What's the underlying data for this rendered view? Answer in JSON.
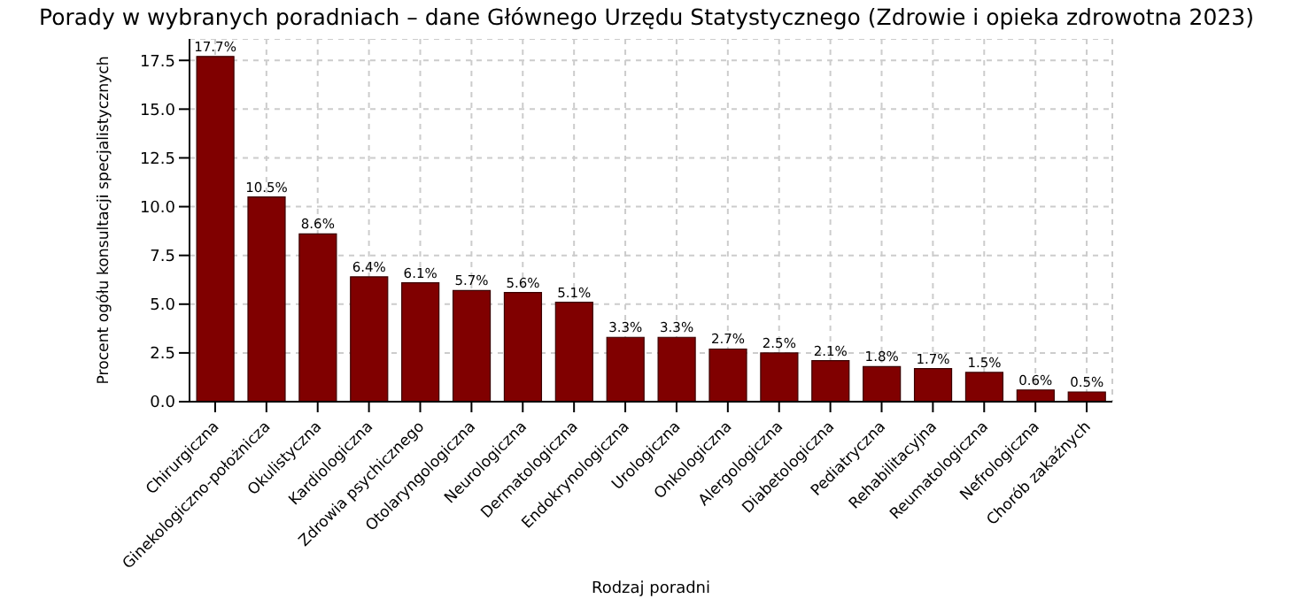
{
  "chart_data": {
    "type": "bar",
    "title": "Porady w wybranych poradniach – dane Głównego Urzędu Statystycznego (Zdrowie i opieka zdrowotna 2023)",
    "xlabel": "Rodzaj poradni",
    "ylabel": "Procent ogółu konsultacji specjalistycznych",
    "categories": [
      "Chirurgiczna",
      "Ginekologiczno-położnicza",
      "Okulistyczna",
      "Kardiologiczna",
      "Zdrowia psychicznego",
      "Otolaryngologiczna",
      "Neurologiczna",
      "Dermatologiczna",
      "Endokrynologiczna",
      "Urologiczna",
      "Onkologiczna",
      "Alergologiczna",
      "Diabetologiczna",
      "Pediatryczna",
      "Rehabilitacyjna",
      "Reumatologiczna",
      "Nefrologiczna",
      "Chorób zakaźnych"
    ],
    "values": [
      17.7,
      10.5,
      8.6,
      6.4,
      6.1,
      5.7,
      5.6,
      5.1,
      3.3,
      3.3,
      2.7,
      2.5,
      2.1,
      1.8,
      1.7,
      1.5,
      0.6,
      0.5
    ],
    "value_labels": [
      "17.7%",
      "10.5%",
      "8.6%",
      "6.4%",
      "6.1%",
      "5.7%",
      "5.6%",
      "5.1%",
      "3.3%",
      "3.3%",
      "2.7%",
      "2.5%",
      "2.1%",
      "1.8%",
      "1.7%",
      "1.5%",
      "0.6%",
      "0.5%"
    ],
    "color": "#800000",
    "ylim": [
      0,
      18.6
    ],
    "yticks": [
      {
        "value": 0,
        "label": "0.0"
      },
      {
        "value": 2.5,
        "label": "2.5"
      },
      {
        "value": 5,
        "label": "5.0"
      },
      {
        "value": 7.5,
        "label": "7.5"
      },
      {
        "value": 10,
        "label": "10.0"
      },
      {
        "value": 12.5,
        "label": "12.5"
      },
      {
        "value": 15,
        "label": "15.0"
      },
      {
        "value": 17.5,
        "label": "17.5"
      }
    ],
    "grid": true,
    "legend": false
  }
}
